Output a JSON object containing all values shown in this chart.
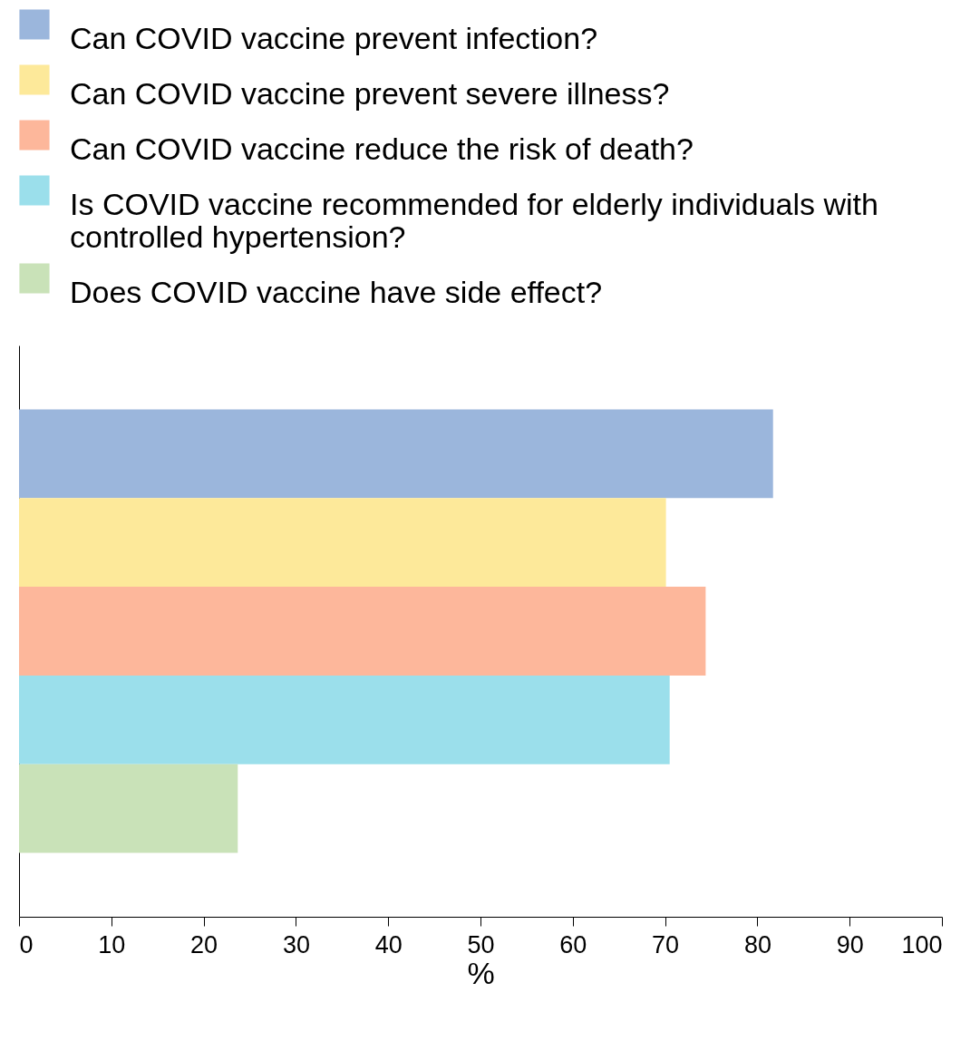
{
  "chart_data": {
    "type": "bar",
    "orientation": "horizontal",
    "categories": [
      null
    ],
    "series": [
      {
        "name": "Can COVID vaccine prevent infection?",
        "color": "#9bb6dc",
        "values": [
          81.7
        ]
      },
      {
        "name": "Can COVID vaccine prevent severe illness?",
        "color": "#fde99a",
        "values": [
          70.1
        ]
      },
      {
        "name": "Can COVID vaccine reduce the risk of death?",
        "color": "#fdb79b",
        "values": [
          74.4
        ]
      },
      {
        "name": "Is COVID vaccine recommended for elderly individuals with controlled hypertension?",
        "color": "#9bdfeb",
        "values": [
          70.5
        ]
      },
      {
        "name": "Does COVID vaccine have side effect?",
        "color": "#c9e2b8",
        "values": [
          23.7
        ]
      }
    ],
    "xlim": [
      0,
      100
    ],
    "xticks": [
      0,
      10,
      20,
      30,
      40,
      50,
      60,
      70,
      80,
      90,
      100
    ],
    "xlabel": "%",
    "legend": "top",
    "tick_labels": "x"
  }
}
